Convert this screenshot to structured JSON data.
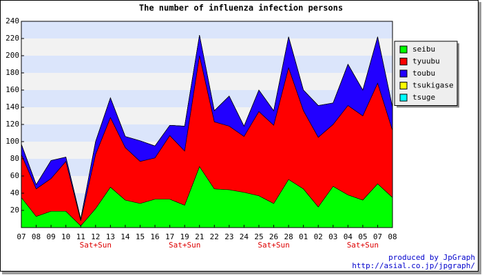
{
  "chart_data": {
    "type": "stacked_area",
    "title": "The number of influenza infection persons",
    "categories": [
      "07",
      "08",
      "09",
      "10",
      "11",
      "12",
      "13",
      "14",
      "15",
      "16",
      "17",
      "19",
      "21",
      "22",
      "23",
      "24",
      "25",
      "26",
      "28",
      "01",
      "02",
      "03",
      "04",
      "05",
      "07",
      "08"
    ],
    "weekend_labels": [
      {
        "category": "12",
        "label": "Sat+Sun"
      },
      {
        "category": "19",
        "label": "Sat+Sun"
      },
      {
        "category": "26",
        "label": "Sat+Sun"
      },
      {
        "category": "05",
        "label": "Sat+Sun"
      }
    ],
    "series": [
      {
        "name": "seibu",
        "color": "#00ff00",
        "values": [
          35,
          13,
          19,
          19,
          2,
          22,
          47,
          32,
          28,
          33,
          33,
          26,
          71,
          45,
          44,
          41,
          37,
          28,
          56,
          45,
          24,
          48,
          38,
          32,
          51,
          35
        ]
      },
      {
        "name": "tyuubu",
        "color": "#ff0000",
        "values": [
          50,
          32,
          38,
          58,
          6,
          63,
          81,
          61,
          49,
          48,
          74,
          63,
          129,
          78,
          74,
          65,
          98,
          91,
          130,
          91,
          81,
          72,
          104,
          98,
          117,
          78
        ]
      },
      {
        "name": "toubu",
        "color": "#2200ff",
        "values": [
          12,
          5,
          21,
          5,
          2,
          15,
          23,
          13,
          24,
          14,
          12,
          29,
          24,
          13,
          35,
          12,
          25,
          17,
          36,
          24,
          37,
          25,
          48,
          30,
          54,
          27
        ]
      },
      {
        "name": "tsukigase",
        "color": "#ffff00",
        "values": [
          0,
          0,
          0,
          0,
          0,
          0,
          0,
          0,
          0,
          0,
          0,
          0,
          0,
          0,
          0,
          0,
          0,
          0,
          0,
          0,
          0,
          0,
          0,
          0,
          0,
          0
        ]
      },
      {
        "name": "tsuge",
        "color": "#00ffff",
        "values": [
          0,
          0,
          0,
          0,
          0,
          0,
          0,
          0,
          0,
          0,
          0,
          0,
          0,
          0,
          0,
          0,
          0,
          0,
          0,
          0,
          0,
          0,
          0,
          0,
          0,
          0
        ]
      }
    ],
    "ylim": [
      0,
      240
    ],
    "yticks": [
      20,
      40,
      60,
      80,
      100,
      120,
      140,
      160,
      180,
      200,
      220,
      240
    ],
    "band_colors": [
      "#dbe5fb",
      "#f2f2f2"
    ],
    "legend": "right",
    "credits": [
      "produced by JpGraph",
      "http://asial.co.jp/jpgraph/"
    ],
    "credits_color": "#0000cc",
    "weekend_color": "#dd0000"
  }
}
